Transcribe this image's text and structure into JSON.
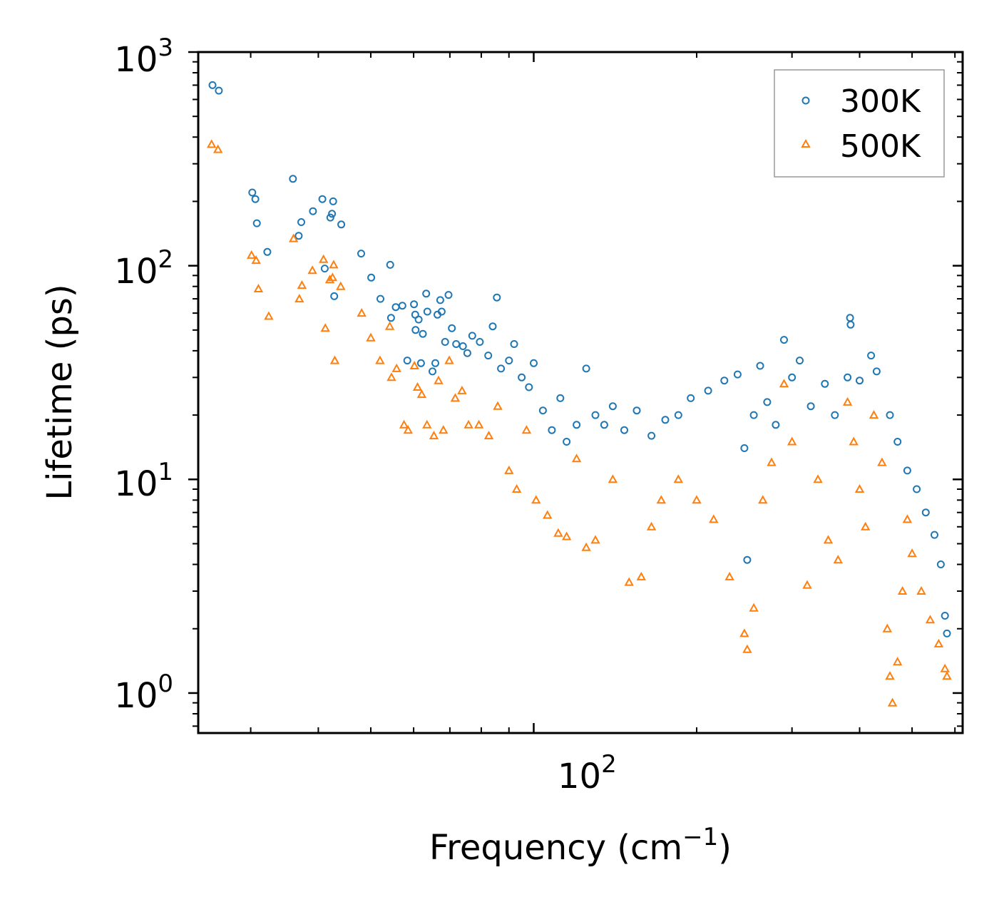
{
  "chart_data": {
    "type": "scatter",
    "xscale": "log",
    "yscale": "log",
    "xlim": [
      24,
      620
    ],
    "ylim": [
      0.65,
      1000
    ],
    "xlabel": "Frequency (cm",
    "xlabel_sup": "−1",
    "xlabel_close": ")",
    "ylabel": "Lifetime (ps)",
    "x_tick_label": {
      "base": "10",
      "exp": "2",
      "value": 100
    },
    "y_tick_labels": [
      {
        "base": "10",
        "exp": "0",
        "value": 1
      },
      {
        "base": "10",
        "exp": "1",
        "value": 10
      },
      {
        "base": "10",
        "exp": "2",
        "value": 100
      },
      {
        "base": "10",
        "exp": "3",
        "value": 1000
      }
    ],
    "legend_position": "top-right",
    "series": [
      {
        "name": "300K",
        "marker": "circle",
        "color": "#1f77b4",
        "points": [
          [
            25.5,
            700
          ],
          [
            26.2,
            660
          ],
          [
            30.2,
            220
          ],
          [
            30.6,
            205
          ],
          [
            30.8,
            158
          ],
          [
            32.2,
            116
          ],
          [
            35.9,
            255
          ],
          [
            36.8,
            138
          ],
          [
            37.2,
            160
          ],
          [
            39.1,
            180
          ],
          [
            40.7,
            205
          ],
          [
            41.1,
            97
          ],
          [
            42.1,
            168
          ],
          [
            42.4,
            175
          ],
          [
            42.6,
            200
          ],
          [
            42.8,
            72
          ],
          [
            44.1,
            156
          ],
          [
            48.0,
            114
          ],
          [
            50.1,
            88
          ],
          [
            52.1,
            70
          ],
          [
            54.3,
            101
          ],
          [
            54.5,
            57
          ],
          [
            55.6,
            64
          ],
          [
            57.2,
            65
          ],
          [
            58.4,
            36
          ],
          [
            60.1,
            66
          ],
          [
            60.4,
            59
          ],
          [
            60.5,
            50
          ],
          [
            61.3,
            56
          ],
          [
            61.9,
            35
          ],
          [
            62.4,
            48
          ],
          [
            63.3,
            74
          ],
          [
            63.6,
            61
          ],
          [
            65.0,
            32
          ],
          [
            65.8,
            35
          ],
          [
            66.4,
            59
          ],
          [
            67.2,
            69
          ],
          [
            67.6,
            61
          ],
          [
            68.6,
            44
          ],
          [
            69.6,
            73
          ],
          [
            70.6,
            51
          ],
          [
            71.9,
            43
          ],
          [
            74.0,
            42
          ],
          [
            75.4,
            39
          ],
          [
            77.0,
            47
          ],
          [
            79.5,
            44
          ],
          [
            82.4,
            38
          ],
          [
            84.0,
            52
          ],
          [
            85.5,
            71
          ],
          [
            87.0,
            33
          ],
          [
            90.0,
            36
          ],
          [
            92.0,
            43
          ],
          [
            95.0,
            30
          ],
          [
            98.0,
            27
          ],
          [
            100.0,
            35
          ],
          [
            104.0,
            21
          ],
          [
            108.0,
            17
          ],
          [
            112.0,
            24
          ],
          [
            115.0,
            15
          ],
          [
            120.0,
            18
          ],
          [
            125.0,
            33
          ],
          [
            130.0,
            20
          ],
          [
            135.0,
            18
          ],
          [
            140.0,
            22
          ],
          [
            147.0,
            17
          ],
          [
            155.0,
            21
          ],
          [
            165.0,
            16
          ],
          [
            175.0,
            19
          ],
          [
            185.0,
            20
          ],
          [
            195.0,
            24
          ],
          [
            210.0,
            26
          ],
          [
            225.0,
            29
          ],
          [
            238.0,
            31
          ],
          [
            245.0,
            14
          ],
          [
            248.0,
            4.2
          ],
          [
            255.0,
            20
          ],
          [
            262.0,
            34
          ],
          [
            270.0,
            23
          ],
          [
            280.0,
            18
          ],
          [
            290.0,
            45
          ],
          [
            300.0,
            30
          ],
          [
            310.0,
            36
          ],
          [
            325.0,
            22
          ],
          [
            345.0,
            28
          ],
          [
            360.0,
            20
          ],
          [
            380.0,
            30
          ],
          [
            384.0,
            57
          ],
          [
            385.0,
            53
          ],
          [
            400.0,
            29
          ],
          [
            420.0,
            38
          ],
          [
            430.0,
            32
          ],
          [
            455.0,
            20
          ],
          [
            470.0,
            15
          ],
          [
            490.0,
            11
          ],
          [
            510.0,
            9
          ],
          [
            530.0,
            7
          ],
          [
            550.0,
            5.5
          ],
          [
            565.0,
            4
          ],
          [
            575.0,
            2.3
          ],
          [
            580.0,
            1.9
          ]
        ]
      },
      {
        "name": "500K",
        "marker": "triangle",
        "color": "#ff7f0e",
        "points": [
          [
            25.4,
            370
          ],
          [
            26.1,
            350
          ],
          [
            30.1,
            112
          ],
          [
            30.7,
            106
          ],
          [
            31.0,
            78
          ],
          [
            32.4,
            58
          ],
          [
            36.0,
            134
          ],
          [
            36.9,
            70
          ],
          [
            37.3,
            81
          ],
          [
            39.0,
            95
          ],
          [
            40.9,
            107
          ],
          [
            41.2,
            51
          ],
          [
            42.0,
            86
          ],
          [
            42.5,
            88
          ],
          [
            42.7,
            101
          ],
          [
            42.9,
            36
          ],
          [
            44.0,
            80
          ],
          [
            48.1,
            60
          ],
          [
            50.0,
            46
          ],
          [
            52.0,
            36
          ],
          [
            54.2,
            52
          ],
          [
            54.6,
            30
          ],
          [
            55.8,
            33
          ],
          [
            57.6,
            18
          ],
          [
            58.6,
            17
          ],
          [
            60.2,
            34
          ],
          [
            61.0,
            27
          ],
          [
            62.1,
            25
          ],
          [
            63.5,
            18
          ],
          [
            65.4,
            16
          ],
          [
            66.7,
            29
          ],
          [
            68.1,
            17
          ],
          [
            69.8,
            36
          ],
          [
            71.6,
            24
          ],
          [
            73.7,
            26
          ],
          [
            75.8,
            18
          ],
          [
            79.2,
            18
          ],
          [
            82.6,
            16
          ],
          [
            85.8,
            22
          ],
          [
            90.0,
            11
          ],
          [
            93.0,
            9
          ],
          [
            97.0,
            17
          ],
          [
            101.0,
            8
          ],
          [
            106.0,
            6.8
          ],
          [
            111.0,
            5.6
          ],
          [
            115.0,
            5.4
          ],
          [
            120.0,
            12.5
          ],
          [
            125.0,
            4.8
          ],
          [
            130.0,
            5.2
          ],
          [
            140.0,
            10
          ],
          [
            150.0,
            3.3
          ],
          [
            158.0,
            3.5
          ],
          [
            165.0,
            6
          ],
          [
            172.0,
            8
          ],
          [
            185.0,
            10
          ],
          [
            200.0,
            8
          ],
          [
            215.0,
            6.5
          ],
          [
            230.0,
            3.5
          ],
          [
            245.0,
            1.9
          ],
          [
            248.0,
            1.6
          ],
          [
            255.0,
            2.5
          ],
          [
            265.0,
            8
          ],
          [
            275.0,
            12
          ],
          [
            290.0,
            28
          ],
          [
            300.0,
            15
          ],
          [
            320.0,
            3.2
          ],
          [
            335.0,
            10
          ],
          [
            350.0,
            5.2
          ],
          [
            365.0,
            4.2
          ],
          [
            380.0,
            23
          ],
          [
            390.0,
            15
          ],
          [
            400.0,
            9
          ],
          [
            410.0,
            6
          ],
          [
            425.0,
            20
          ],
          [
            440.0,
            12
          ],
          [
            450.0,
            2
          ],
          [
            455.0,
            1.2
          ],
          [
            460.0,
            0.9
          ],
          [
            470.0,
            1.4
          ],
          [
            480.0,
            3
          ],
          [
            490.0,
            6.5
          ],
          [
            500.0,
            4.5
          ],
          [
            520.0,
            3
          ],
          [
            540.0,
            2.2
          ],
          [
            560.0,
            1.7
          ],
          [
            575.0,
            1.3
          ],
          [
            580.0,
            1.2
          ]
        ]
      }
    ]
  }
}
